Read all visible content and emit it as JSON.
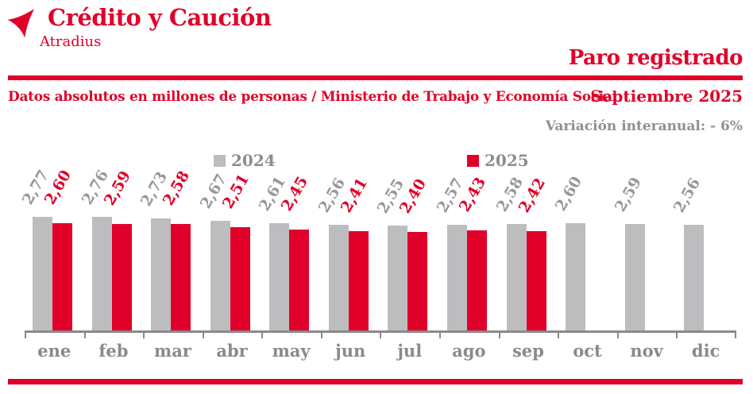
{
  "brand": {
    "logo_text": "Crédito y Caución",
    "logo_subtext": "Atradius"
  },
  "header": {
    "title": "Paro registrado",
    "subtitle": "Datos absolutos en millones de personas / Ministerio de Trabajo y Economía Social",
    "period": "Septiembre 2025",
    "variation": "Variación interanual: - 6%"
  },
  "legend": {
    "position": "top",
    "items": [
      {
        "label": "2024",
        "color": "#BDBDBF"
      },
      {
        "label": "2025",
        "color": "#E0002A"
      }
    ]
  },
  "colors": {
    "accent_red": "#E0002A",
    "bar_gray": "#BDBDBF",
    "value_label_gray": "#98989B",
    "axis_gray": "#8A8A8C"
  },
  "chart_data": {
    "type": "bar",
    "title": "Paro registrado",
    "subtitle": "Datos absolutos en millones de personas / Ministerio de Trabajo y Economía Social",
    "period": "Septiembre 2025",
    "annotation": "Variación interanual: - 6%",
    "unit": "millones de personas",
    "categories": [
      "ene",
      "feb",
      "mar",
      "abr",
      "may",
      "jun",
      "jul",
      "ago",
      "sep",
      "oct",
      "nov",
      "dic"
    ],
    "series": [
      {
        "name": "2024",
        "color": "#BDBDBF",
        "label_color": "#98989B",
        "values": [
          2.77,
          2.76,
          2.73,
          2.67,
          2.61,
          2.56,
          2.55,
          2.57,
          2.58,
          2.6,
          2.59,
          2.56
        ]
      },
      {
        "name": "2025",
        "color": "#E0002A",
        "label_color": "#E0002A",
        "values": [
          2.6,
          2.59,
          2.58,
          2.51,
          2.45,
          2.41,
          2.4,
          2.43,
          2.42,
          null,
          null,
          null
        ]
      }
    ],
    "ylim": [
      0,
      2.8
    ],
    "grid": false,
    "decimal_separator": ","
  }
}
